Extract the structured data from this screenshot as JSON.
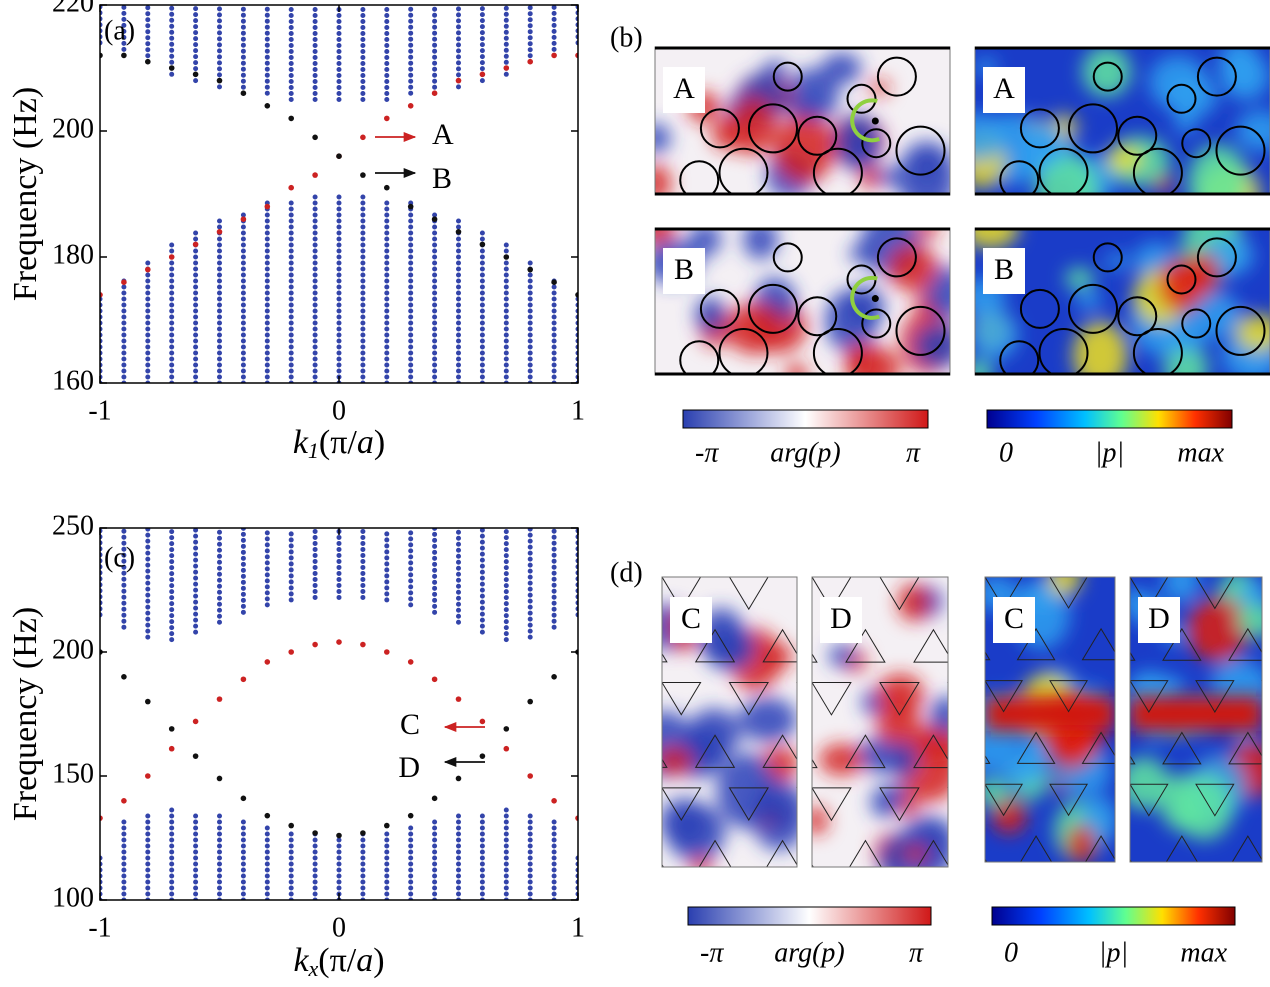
{
  "chart_data": [
    {
      "type": "scatter",
      "panel_label": "(a)",
      "y_label": "Frequency (Hz)",
      "x_label": [
        "k",
        "1",
        "(π/",
        "a",
        ")"
      ],
      "x": [
        -1,
        -0.9,
        -0.8,
        -0.7,
        -0.6,
        -0.5,
        -0.4,
        -0.3,
        -0.2,
        -0.1,
        0,
        0.1,
        0.2,
        0.3,
        0.4,
        0.5,
        0.6,
        0.7,
        0.8,
        0.9,
        1
      ],
      "xlim": [
        -1,
        1
      ],
      "xticks": [
        -1,
        0,
        1
      ],
      "ylim": [
        160,
        220
      ],
      "yticks": [
        160,
        180,
        200,
        220
      ],
      "bands": [
        {
          "color": "#3344aa",
          "lower": [
            214,
            212,
            211,
            209,
            208,
            207,
            206,
            206,
            205,
            205,
            205,
            205,
            205,
            206,
            206,
            207,
            208,
            209,
            211,
            212,
            214
          ],
          "upper": [
            220,
            220,
            220,
            220,
            220,
            220,
            220,
            220,
            220,
            220,
            220,
            220,
            220,
            220,
            220,
            220,
            220,
            220,
            220,
            220,
            220
          ]
        },
        {
          "color": "#3344aa",
          "lower": [
            160,
            160,
            160,
            160,
            160,
            160,
            160,
            160,
            160,
            160,
            160,
            160,
            160,
            160,
            160,
            160,
            160,
            160,
            160,
            160,
            160
          ],
          "upper": [
            174,
            177,
            180,
            182,
            184,
            186,
            187,
            189,
            189,
            190,
            190,
            190,
            189,
            189,
            187,
            186,
            184,
            182,
            180,
            177,
            174
          ]
        }
      ],
      "series": [
        {
          "color": "#cc2222",
          "values": [
            174,
            176,
            178,
            180,
            182,
            184,
            186,
            188,
            191,
            193,
            196,
            199,
            202,
            204,
            206,
            208,
            209,
            210,
            211,
            212,
            212
          ]
        },
        {
          "color": "#111111",
          "values": [
            212,
            212,
            211,
            210,
            209,
            208,
            206,
            204,
            202,
            199,
            196,
            193,
            191,
            188,
            186,
            184,
            182,
            180,
            178,
            176,
            174
          ]
        }
      ],
      "annotations": [
        {
          "text": "A",
          "color": "#cc2222"
        },
        {
          "text": "B",
          "color": "#111111"
        }
      ]
    },
    {
      "type": "scatter",
      "panel_label": "(c)",
      "y_label": "Frequency (Hz)",
      "x_label": [
        "k",
        "x",
        "(π/",
        "a",
        ")"
      ],
      "x": [
        -1,
        -0.9,
        -0.8,
        -0.7,
        -0.6,
        -0.5,
        -0.4,
        -0.3,
        -0.2,
        -0.1,
        0,
        0.1,
        0.2,
        0.3,
        0.4,
        0.5,
        0.6,
        0.7,
        0.8,
        0.9,
        1
      ],
      "xlim": [
        -1,
        1
      ],
      "xticks": [
        -1,
        0,
        1
      ],
      "ylim": [
        100,
        250
      ],
      "yticks": [
        100,
        150,
        200,
        250
      ],
      "bands": [
        {
          "color": "#3344aa",
          "lower": [
            215,
            210,
            206,
            205,
            208,
            212,
            216,
            219,
            221,
            222,
            222,
            222,
            221,
            219,
            216,
            212,
            208,
            205,
            206,
            210,
            215
          ],
          "upper": [
            250,
            250,
            250,
            250,
            250,
            250,
            250,
            250,
            250,
            250,
            250,
            250,
            250,
            250,
            250,
            250,
            250,
            250,
            250,
            250,
            250
          ]
        },
        {
          "color": "#3344aa",
          "lower": [
            100,
            100,
            100,
            100,
            100,
            100,
            100,
            100,
            100,
            100,
            100,
            100,
            100,
            100,
            100,
            100,
            100,
            100,
            100,
            100,
            100
          ],
          "upper": [
            118,
            133,
            136,
            137,
            136,
            134,
            132,
            130,
            128,
            127,
            126,
            127,
            128,
            130,
            132,
            134,
            136,
            137,
            136,
            133,
            118
          ]
        }
      ],
      "series": [
        {
          "color": "#cc2222",
          "values": [
            133,
            140,
            150,
            161,
            172,
            181,
            189,
            196,
            200,
            203,
            204,
            203,
            200,
            196,
            189,
            181,
            172,
            161,
            150,
            140,
            133
          ]
        },
        {
          "color": "#111111",
          "values": [
            200,
            190,
            180,
            169,
            158,
            149,
            141,
            134,
            130,
            127,
            126,
            127,
            130,
            134,
            141,
            149,
            158,
            169,
            180,
            190,
            200
          ]
        }
      ],
      "annotations": [
        {
          "text": "C",
          "color": "#cc2222"
        },
        {
          "text": "D",
          "color": "#111111"
        }
      ]
    }
  ],
  "field_panels": [
    {
      "panel_label": "(b)",
      "maps": [
        {
          "label": "A"
        },
        {
          "label": "A"
        },
        {
          "label": "B"
        },
        {
          "label": "B"
        }
      ],
      "colorbars": [
        [
          "-π",
          "arg(p)",
          "π"
        ],
        [
          "0",
          "|p|",
          "max"
        ]
      ]
    },
    {
      "panel_label": "(d)",
      "maps": [
        {
          "label": "C"
        },
        {
          "label": "D"
        },
        {
          "label": "C"
        },
        {
          "label": "D"
        }
      ],
      "colorbars": [
        [
          "-π",
          "arg(p)",
          "π"
        ],
        [
          "0",
          "|p|",
          "max"
        ]
      ]
    }
  ]
}
